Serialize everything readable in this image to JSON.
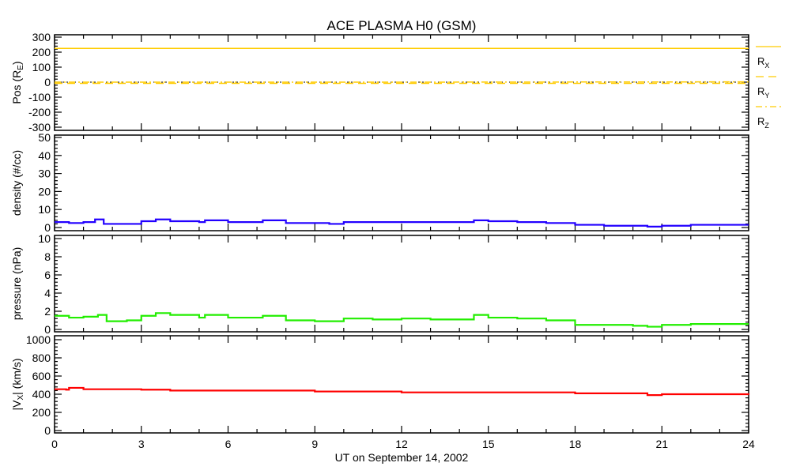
{
  "chart_data": [
    {
      "type": "line",
      "title": "ACE PLASMA H0 (GSM)",
      "ylabel": "Pos (R",
      "ylabel_sub": "E",
      "ylabel_end": ")",
      "ylim": [
        -300,
        300
      ],
      "yticks": [
        300,
        200,
        100,
        0,
        -100,
        -200,
        -300
      ],
      "zero_line": true,
      "legend": [
        {
          "label": "R",
          "sub": "X",
          "style": "solid"
        },
        {
          "label": "R",
          "sub": "Y",
          "style": "dashed"
        },
        {
          "label": "R",
          "sub": "Z",
          "style": "dashdot"
        }
      ],
      "legend_placement": "right",
      "series": [
        {
          "name": "RX",
          "color": "#ffcc00",
          "x": [
            0,
            24
          ],
          "values": [
            225,
            225
          ]
        },
        {
          "name": "RY",
          "color": "#ffcc00",
          "x": [
            0,
            24
          ],
          "values": [
            -8,
            -8
          ]
        },
        {
          "name": "RZ",
          "color": "#ffcc00",
          "x": [
            0,
            12,
            24
          ],
          "values": [
            0,
            0,
            2
          ]
        }
      ]
    },
    {
      "type": "line",
      "ylabel": "density (#/cc)",
      "ylim": [
        0,
        50
      ],
      "yticks": [
        50,
        40,
        30,
        20,
        10,
        0
      ],
      "series": [
        {
          "name": "density",
          "color": "#2200ff",
          "x": [
            0,
            0.5,
            1,
            1.4,
            1.7,
            2.5,
            3,
            3.5,
            4,
            5,
            5.2,
            6,
            7.2,
            8,
            9,
            9.5,
            10,
            11,
            12,
            13,
            14,
            14.5,
            15,
            16,
            17,
            18,
            19,
            20,
            20.5,
            21,
            22,
            23,
            24
          ],
          "values": [
            3,
            2.5,
            3,
            4.5,
            2,
            2,
            3.5,
            4.5,
            3.5,
            3,
            4,
            3,
            4,
            2.5,
            2.5,
            2,
            3,
            3,
            3,
            3,
            3,
            4,
            3.5,
            3,
            2.5,
            1.5,
            1,
            1,
            0.5,
            1,
            1.5,
            1.5,
            1.5
          ]
        }
      ]
    },
    {
      "type": "line",
      "ylabel": "pressure (nPa)",
      "ylim": [
        0,
        10
      ],
      "yticks": [
        10,
        8,
        6,
        4,
        2,
        0
      ],
      "series": [
        {
          "name": "pressure",
          "color": "#22ee00",
          "x": [
            0,
            0.5,
            1,
            1.5,
            1.8,
            2.5,
            3,
            3.5,
            4,
            5,
            5.2,
            6,
            7.2,
            8,
            9,
            10,
            11,
            12,
            13,
            14,
            14.5,
            15,
            16,
            17,
            18,
            19,
            20,
            20.5,
            21,
            22,
            23,
            24
          ],
          "values": [
            1.5,
            1.3,
            1.4,
            1.6,
            0.9,
            1.0,
            1.5,
            1.8,
            1.6,
            1.3,
            1.6,
            1.3,
            1.5,
            1.0,
            0.9,
            1.2,
            1.1,
            1.2,
            1.1,
            1.1,
            1.6,
            1.3,
            1.2,
            1.0,
            0.5,
            0.5,
            0.4,
            0.3,
            0.5,
            0.6,
            0.6,
            0.6
          ]
        }
      ]
    },
    {
      "type": "line",
      "ylabel": "|V",
      "ylabel_sub": "X",
      "ylabel_end": "| (km/s)",
      "ylim": [
        0,
        1000
      ],
      "yticks": [
        1000,
        800,
        600,
        400,
        200,
        0
      ],
      "xlabel": "UT on September 14, 2002",
      "xlim": [
        0,
        24
      ],
      "xticks": [
        0,
        3,
        6,
        9,
        12,
        15,
        18,
        21,
        24
      ],
      "series": [
        {
          "name": "Vx",
          "color": "#ff0000",
          "x": [
            0,
            0.4,
            0.5,
            1,
            3,
            4,
            6,
            9,
            12,
            15,
            18,
            20.5,
            21,
            24
          ],
          "values": [
            455,
            450,
            470,
            455,
            450,
            440,
            440,
            430,
            420,
            420,
            410,
            390,
            400,
            395
          ]
        }
      ]
    }
  ]
}
